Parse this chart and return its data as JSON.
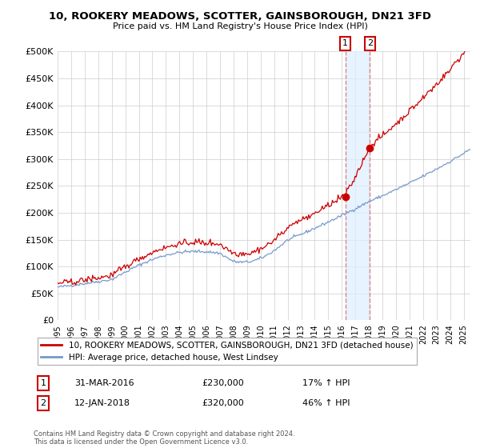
{
  "title": "10, ROOKERY MEADOWS, SCOTTER, GAINSBOROUGH, DN21 3FD",
  "subtitle": "Price paid vs. HM Land Registry's House Price Index (HPI)",
  "legend_label_red": "10, ROOKERY MEADOWS, SCOTTER, GAINSBOROUGH, DN21 3FD (detached house)",
  "legend_label_blue": "HPI: Average price, detached house, West Lindsey",
  "transaction1_date": "31-MAR-2016",
  "transaction1_price": "£230,000",
  "transaction1_hpi": "17% ↑ HPI",
  "transaction2_date": "12-JAN-2018",
  "transaction2_price": "£320,000",
  "transaction2_hpi": "46% ↑ HPI",
  "footer": "Contains HM Land Registry data © Crown copyright and database right 2024.\nThis data is licensed under the Open Government Licence v3.0.",
  "ylim": [
    0,
    500000
  ],
  "yticks": [
    0,
    50000,
    100000,
    150000,
    200000,
    250000,
    300000,
    350000,
    400000,
    450000,
    500000
  ],
  "color_red": "#cc0000",
  "color_blue": "#7799cc",
  "vline_color": "#dd8888",
  "shade_color": "#ddeeff",
  "background_color": "#ffffff",
  "grid_color": "#cccccc"
}
